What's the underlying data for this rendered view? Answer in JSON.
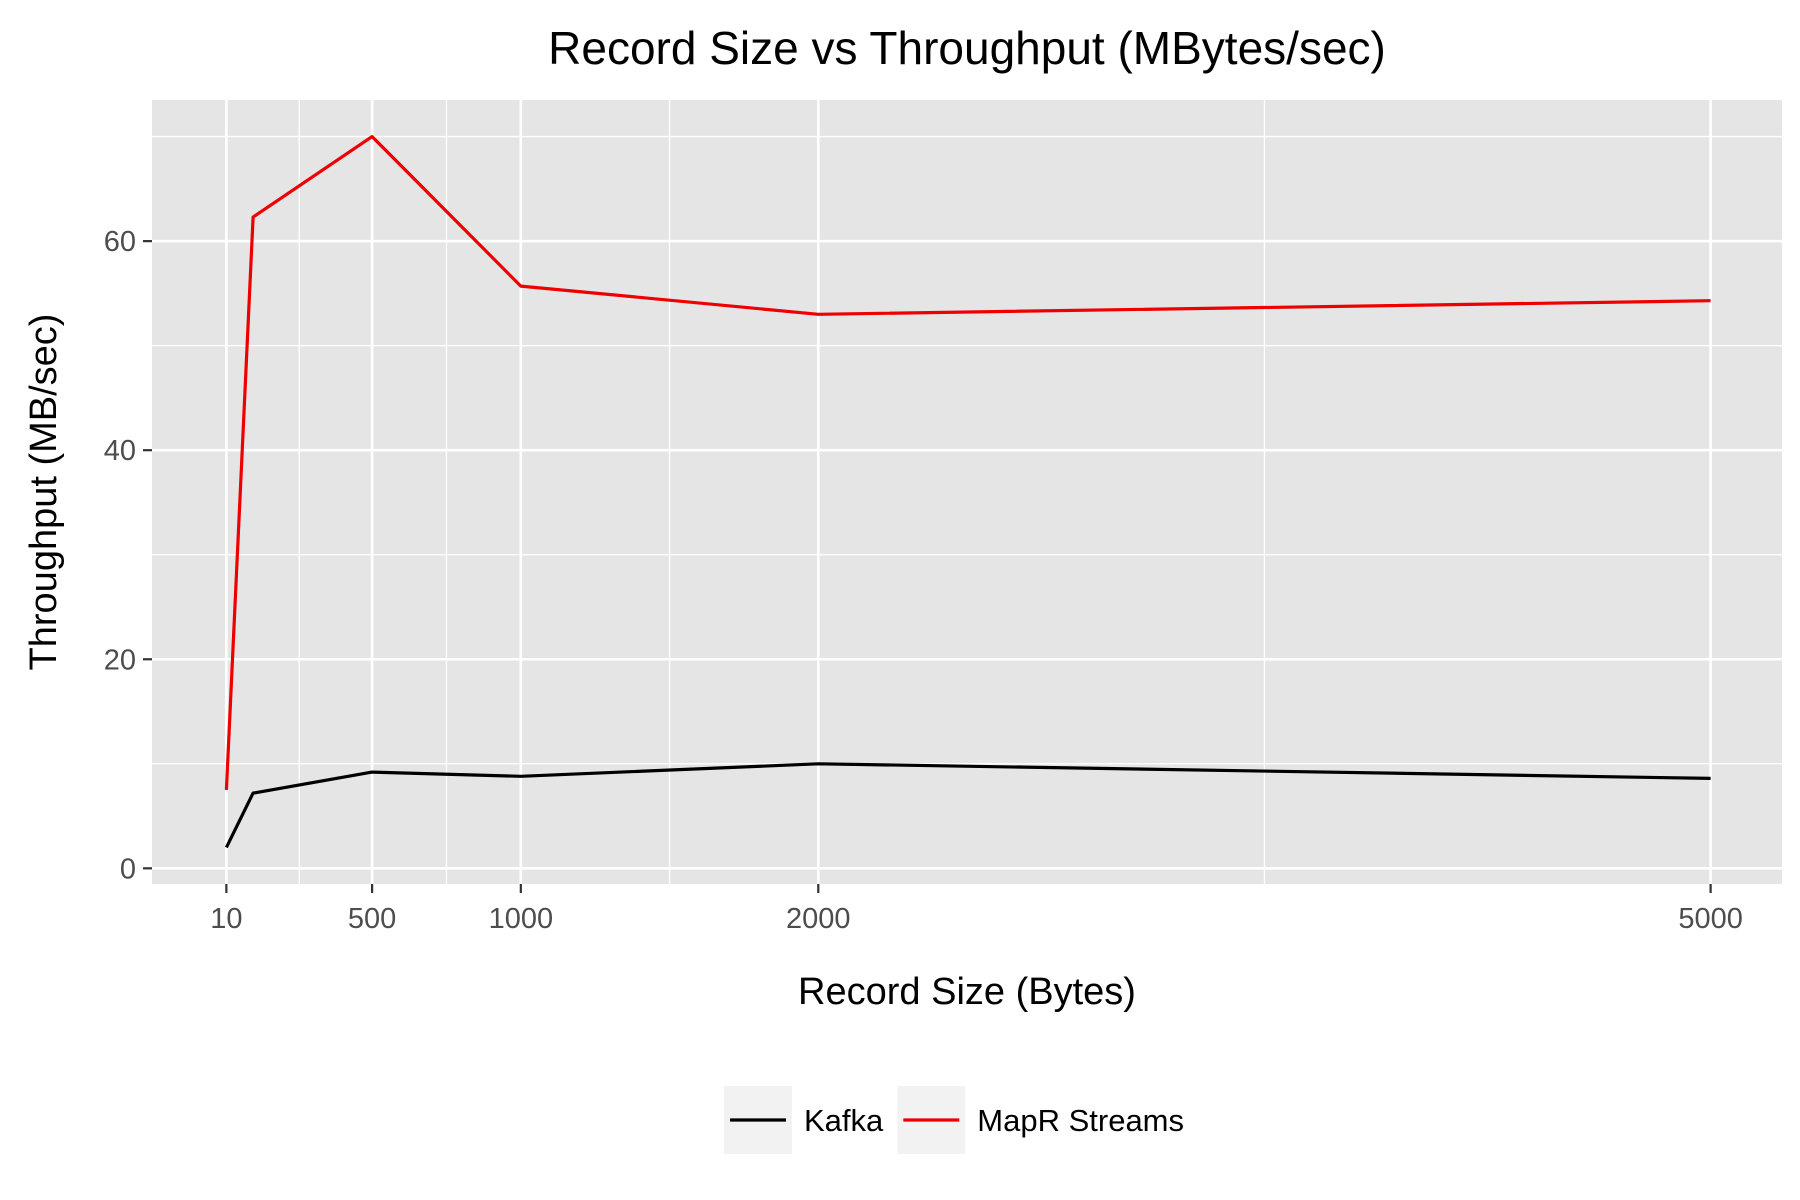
{
  "chart_data": {
    "type": "line",
    "title": "Record Size vs Throughput (MBytes/sec)",
    "xlabel": "Record Size (Bytes)",
    "ylabel": "Throughput (MB/sec)",
    "xlim": [
      -240,
      5240
    ],
    "ylim": [
      -1.5,
      73.5
    ],
    "x_ticks": [
      10,
      500,
      1000,
      2000,
      5000
    ],
    "y_ticks": [
      0,
      20,
      40,
      60
    ],
    "x_minor_ticks": [
      255,
      750,
      1500,
      3500
    ],
    "y_minor_ticks": [
      10,
      30,
      50,
      70
    ],
    "grid": true,
    "legend_position": "bottom",
    "colors": {
      "panel": "#e5e5e5",
      "grid": "#ffffff",
      "kafka": "#000000",
      "mapr": "#ee0000"
    },
    "series": [
      {
        "name": "Kafka",
        "color": "#000000",
        "x": [
          10,
          100,
          500,
          1000,
          2000,
          5000
        ],
        "y": [
          2.0,
          7.2,
          9.2,
          8.8,
          10.0,
          8.6
        ]
      },
      {
        "name": "MapR Streams",
        "color": "#ee0000",
        "x": [
          10,
          100,
          500,
          1000,
          2000,
          5000
        ],
        "y": [
          7.5,
          62.3,
          70.0,
          55.7,
          53.0,
          54.3
        ]
      }
    ]
  }
}
